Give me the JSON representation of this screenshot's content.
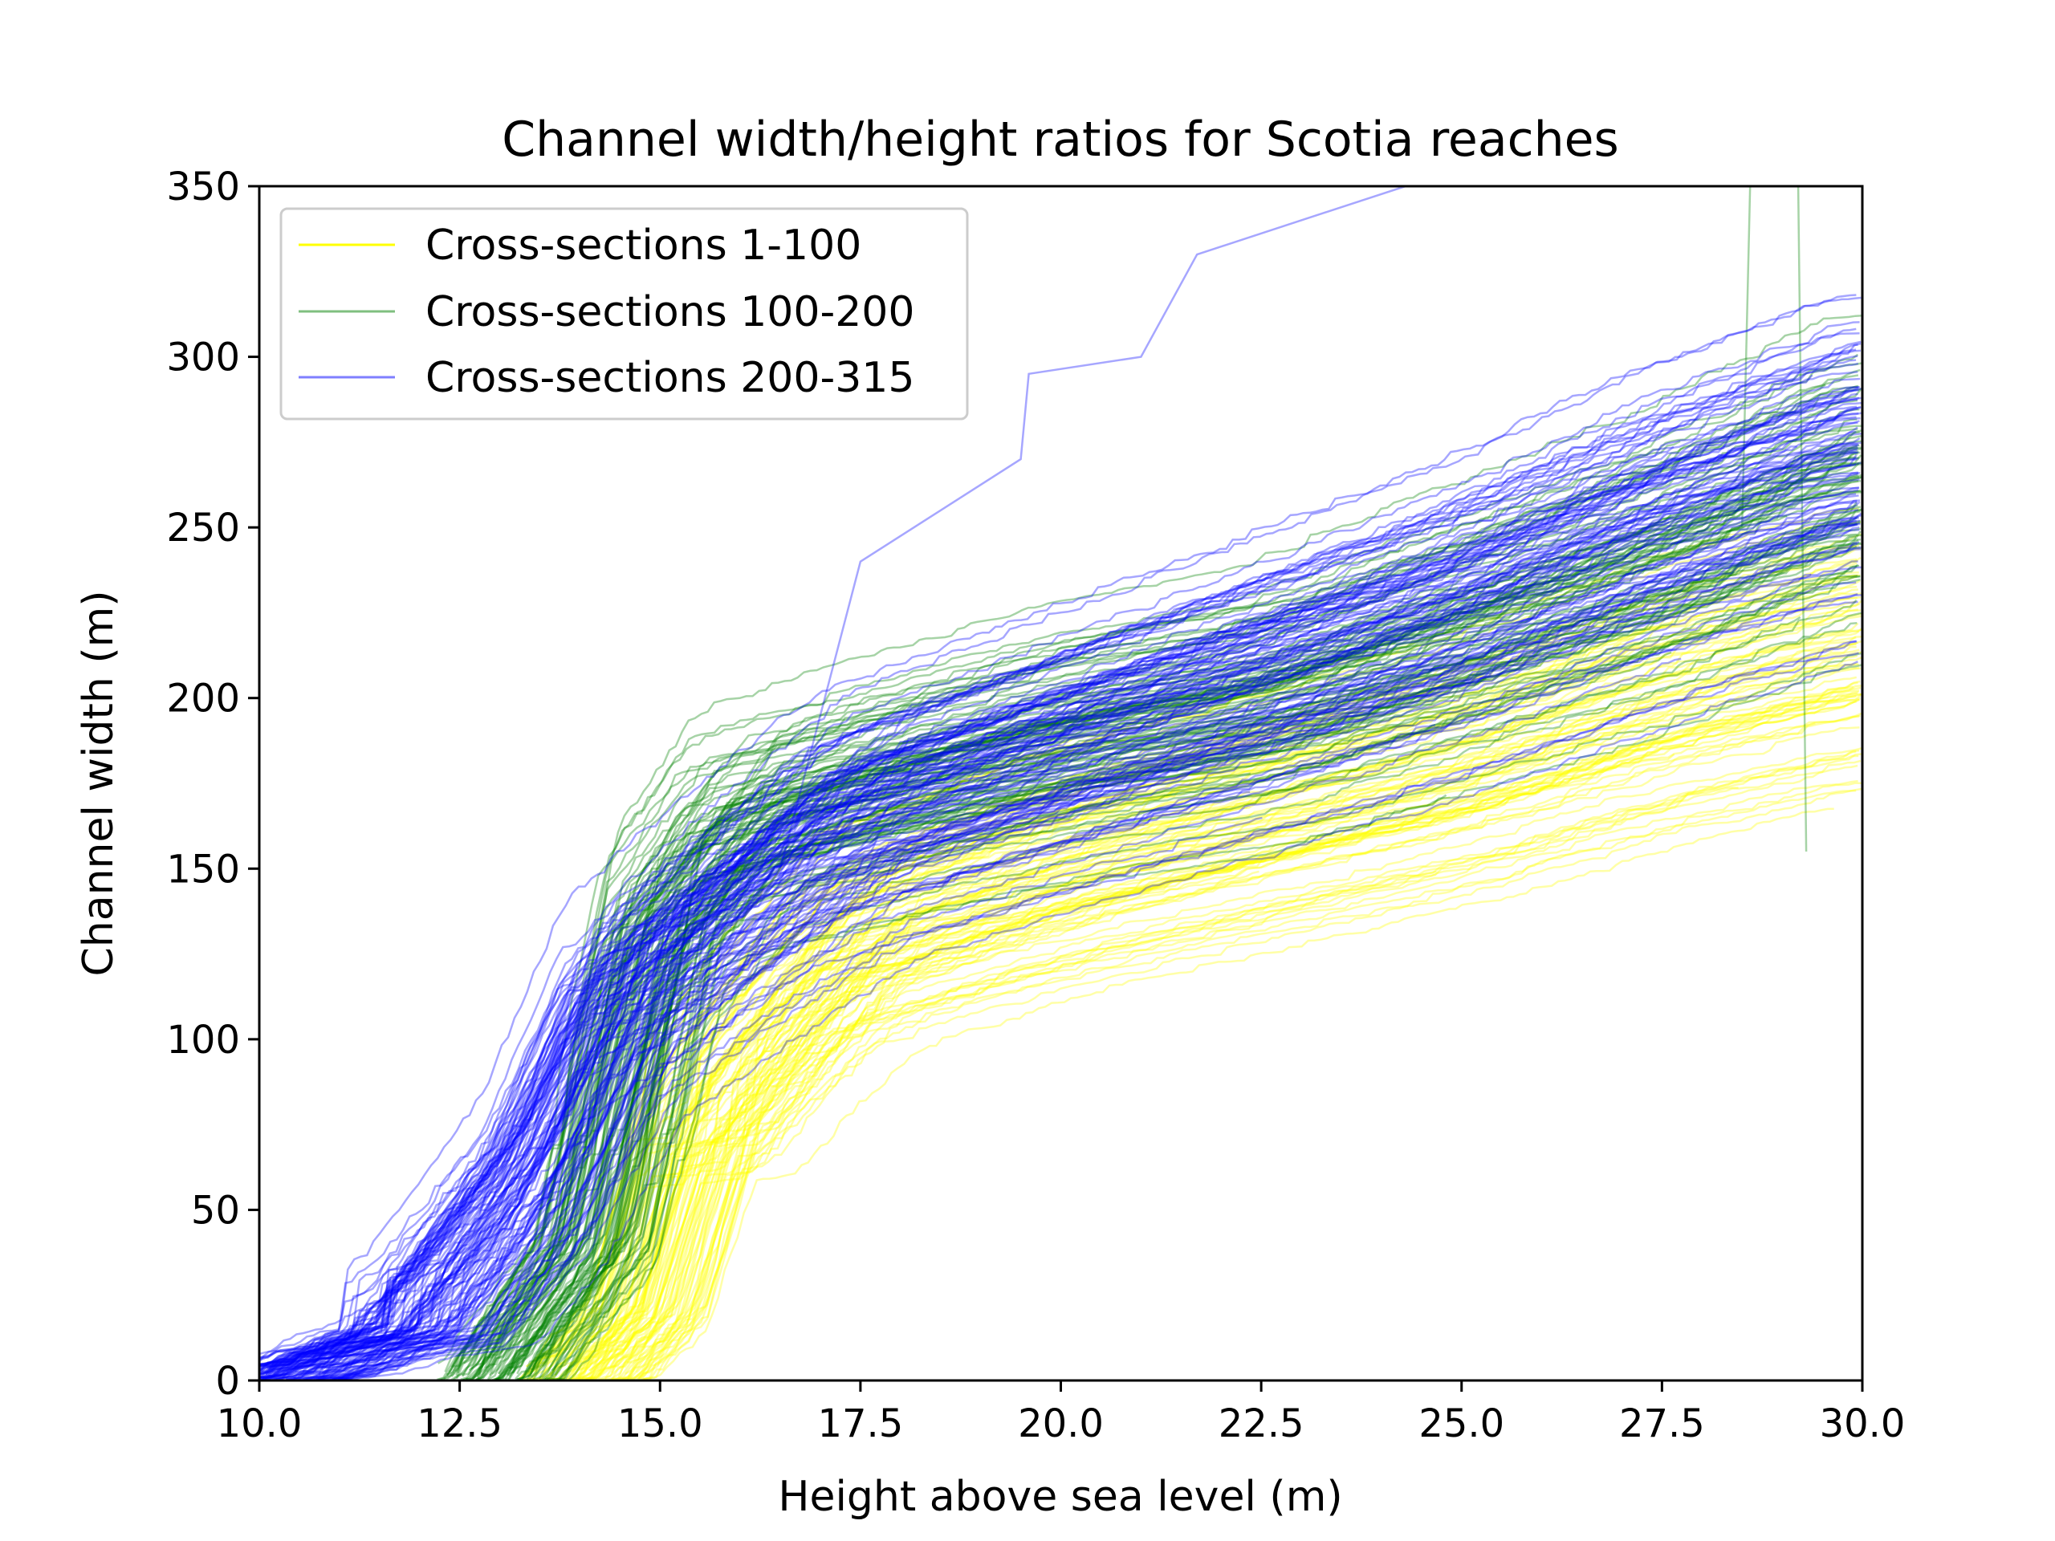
{
  "chart_data": {
    "type": "line",
    "title": "Channel width/height ratios for Scotia reaches",
    "xlabel": "Height above sea level (m)",
    "ylabel": "Channel width (m)",
    "xlim": [
      10.0,
      30.0
    ],
    "ylim": [
      0,
      350
    ],
    "grid": false,
    "legend_position": "top-left",
    "xticks": [
      "10.0",
      "12.5",
      "15.0",
      "17.5",
      "20.0",
      "22.5",
      "25.0",
      "27.5",
      "30.0"
    ],
    "yticks": [
      "0",
      "50",
      "100",
      "150",
      "200",
      "250",
      "300",
      "350"
    ],
    "series": [
      {
        "name": "Cross-sections 1-100",
        "color": "#ffff00",
        "opacity": 0.35,
        "count": 100,
        "representative_curve": {
          "x": [
            14.0,
            14.8,
            15.5,
            16.5,
            17.5,
            20.0,
            22.5,
            25.0,
            27.5,
            30.0
          ],
          "y": [
            0,
            20,
            75,
            105,
            130,
            150,
            165,
            180,
            200,
            215
          ]
        },
        "spread_at_x": {
          "x": [
            15.5,
            17.5,
            25.0,
            30.0
          ],
          "y_min": [
            40,
            110,
            160,
            195
          ],
          "y_max": [
            100,
            160,
            205,
            250
          ]
        }
      },
      {
        "name": "Cross-sections 100-200",
        "color": "#008000",
        "opacity": 0.35,
        "count": 100,
        "representative_curve": {
          "x": [
            13.0,
            14.2,
            15.0,
            16.0,
            17.5,
            20.0,
            22.5,
            25.0,
            27.5,
            30.0
          ],
          "y": [
            0,
            40,
            130,
            160,
            170,
            185,
            195,
            215,
            235,
            260
          ]
        },
        "spread_at_x": {
          "x": [
            15.0,
            20.0,
            25.0,
            30.0
          ],
          "y_min": [
            90,
            150,
            150,
            230
          ],
          "y_max": [
            160,
            200,
            235,
            285
          ]
        },
        "outliers": [
          {
            "x": [
              28.5,
              28.6
            ],
            "y": [
              250,
              350
            ]
          },
          {
            "x": [
              29.2,
              29.3
            ],
            "y": [
              350,
              155
            ]
          }
        ]
      },
      {
        "name": "Cross-sections 200-315",
        "color": "#0000ff",
        "opacity": 0.35,
        "count": 115,
        "representative_curve": {
          "x": [
            10.3,
            12.0,
            13.5,
            14.5,
            15.5,
            17.5,
            20.0,
            22.5,
            25.0,
            27.5,
            30.0
          ],
          "y": [
            0,
            15,
            60,
            110,
            130,
            165,
            185,
            205,
            225,
            250,
            270
          ]
        },
        "spread_at_x": {
          "x": [
            14.5,
            20.0,
            25.0,
            30.0
          ],
          "y_min": [
            60,
            165,
            200,
            250
          ],
          "y_max": [
            210,
            230,
            300,
            335
          ]
        },
        "outliers": [
          {
            "x": [
              16.5,
              17.5,
              19.5,
              19.6,
              21.0,
              21.7,
              24.3
            ],
            "y": [
              150,
              240,
              270,
              295,
              300,
              330,
              350
            ]
          }
        ]
      }
    ]
  }
}
